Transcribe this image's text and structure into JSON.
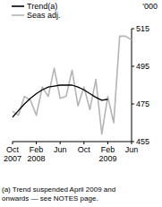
{
  "chart_data": {
    "type": "line",
    "unit_label": "'000",
    "categories": [
      "Oct 2007",
      null,
      null,
      null,
      "Feb 2008",
      null,
      null,
      null,
      "Jun",
      null,
      null,
      null,
      "Oct",
      null,
      null,
      null,
      "Feb 2009",
      null,
      null,
      null,
      "Jun"
    ],
    "series": [
      {
        "name": "Trend(a)",
        "color": "#000000",
        "values": [
          468,
          471.5,
          475,
          478,
          480.5,
          482.5,
          484,
          484.5,
          485,
          485,
          485,
          484,
          482.5,
          480.5,
          478.5,
          477,
          477.5,
          null,
          null,
          null,
          null
        ]
      },
      {
        "name": "Seas adj.",
        "color": "#b4b4b4",
        "values": [
          471,
          469,
          479,
          477,
          469,
          484,
          479,
          494,
          478,
          479,
          493,
          474,
          484,
          472,
          488,
          459,
          479,
          465,
          511,
          511,
          509
        ]
      }
    ],
    "ylim": [
      455,
      515
    ],
    "yticks": [
      455,
      475,
      495,
      515
    ],
    "grid": false,
    "legend": "top-left",
    "notes": [
      "(a) Trend suspended April 2009 and",
      "onwards — see NOTES page."
    ]
  }
}
